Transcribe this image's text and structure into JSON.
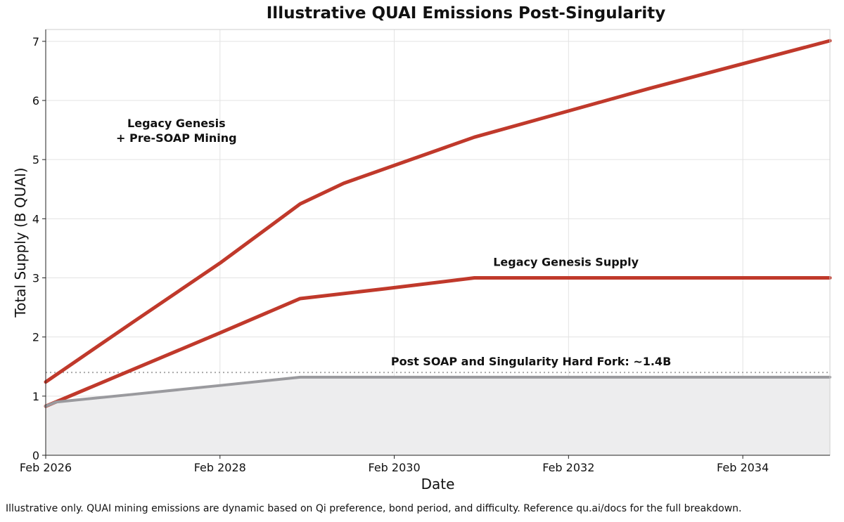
{
  "chart_data": {
    "type": "line",
    "title": "Illustrative QUAI Emissions Post-Singularity",
    "xlabel": "Date",
    "ylabel": "Total Supply (B QUAI)",
    "xlim": [
      2026.08,
      2035.08
    ],
    "ylim": [
      0,
      7.2
    ],
    "x_ticks": [
      {
        "value": 2026.08,
        "label": "Feb 2026"
      },
      {
        "value": 2028.08,
        "label": "Feb 2028"
      },
      {
        "value": 2030.08,
        "label": "Feb 2030"
      },
      {
        "value": 2032.08,
        "label": "Feb 2032"
      },
      {
        "value": 2034.08,
        "label": "Feb 2034"
      }
    ],
    "y_ticks": [
      0,
      1,
      2,
      3,
      4,
      5,
      6,
      7
    ],
    "grid": true,
    "series": [
      {
        "name": "Legacy Genesis + Pre-SOAP Mining",
        "color": "#c0392b",
        "points": [
          [
            2026.08,
            1.24
          ],
          [
            2027.08,
            2.25
          ],
          [
            2028.08,
            3.25
          ],
          [
            2029.0,
            4.25
          ],
          [
            2029.5,
            4.6
          ],
          [
            2031.0,
            5.38
          ],
          [
            2033.0,
            6.2
          ],
          [
            2035.08,
            7.01
          ]
        ]
      },
      {
        "name": "Legacy Genesis Supply",
        "color": "#c0392b",
        "points": [
          [
            2026.08,
            0.83
          ],
          [
            2027.08,
            1.45
          ],
          [
            2028.08,
            2.07
          ],
          [
            2029.0,
            2.65
          ],
          [
            2030.0,
            2.82
          ],
          [
            2031.0,
            3.0
          ],
          [
            2035.08,
            3.0
          ]
        ]
      },
      {
        "name": "Post SOAP and Singularity Hard Fork: ~1.4B",
        "color": "#9a9a9e",
        "fill": "#ededee",
        "points": [
          [
            2026.08,
            0.83
          ],
          [
            2026.2,
            0.9
          ],
          [
            2027.08,
            1.03
          ],
          [
            2028.08,
            1.18
          ],
          [
            2029.0,
            1.32
          ],
          [
            2035.08,
            1.32
          ]
        ]
      }
    ],
    "reference_line": {
      "value": 1.4,
      "color": "#aaaaaa"
    },
    "annotations": [
      {
        "lines": [
          "Legacy Genesis",
          "+ Pre-SOAP Mining"
        ],
        "x": 2027.58,
        "y": 5.55
      },
      {
        "lines": [
          "Legacy Genesis Supply"
        ],
        "x": 2032.05,
        "y": 3.2
      },
      {
        "lines": [
          "Post SOAP and Singularity Hard Fork: ~1.4B"
        ],
        "x": 2031.65,
        "y": 1.52
      }
    ]
  },
  "footnote": "Illustrative only. QUAI mining emissions are dynamic based on Qi preference, bond period, and difficulty. Reference qu.ai/docs for the full breakdown."
}
